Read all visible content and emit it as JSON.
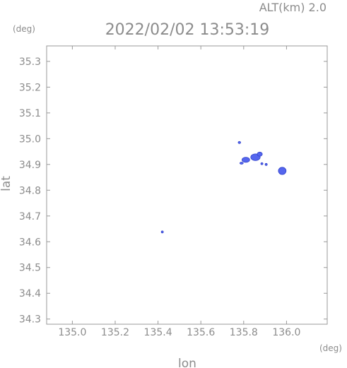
{
  "header": {
    "altitude_label": "ALT(km)  2.0",
    "timestamp": "2022/02/02 13:53:19",
    "y_unit": "(deg)",
    "x_unit": "(deg)"
  },
  "chart_data": {
    "type": "scatter",
    "xlabel": "lon",
    "ylabel": "lat",
    "xlim": [
      134.88,
      136.19
    ],
    "ylim": [
      34.28,
      35.36
    ],
    "x_ticks": [
      "135.0",
      "135.2",
      "135.4",
      "135.6",
      "135.8",
      "136.0"
    ],
    "x_tick_values": [
      135.0,
      135.2,
      135.4,
      135.6,
      135.8,
      136.0
    ],
    "y_ticks": [
      "34.3",
      "34.4",
      "34.5",
      "34.6",
      "34.7",
      "34.8",
      "34.9",
      "35.0",
      "35.1",
      "35.2",
      "35.3"
    ],
    "y_tick_values": [
      34.3,
      34.4,
      34.5,
      34.6,
      34.7,
      34.8,
      34.9,
      35.0,
      35.1,
      35.2,
      35.3
    ],
    "grid": false,
    "echo_color": "#5566ee",
    "echo_edge_color": "#3344cc",
    "echo_cells": [
      {
        "lon": 135.78,
        "lat": 34.985,
        "rx_deg": 0.006,
        "ry_deg": 0.003
      },
      {
        "lon": 135.81,
        "lat": 34.918,
        "rx_deg": 0.018,
        "ry_deg": 0.01
      },
      {
        "lon": 135.855,
        "lat": 34.928,
        "rx_deg": 0.022,
        "ry_deg": 0.013
      },
      {
        "lon": 135.875,
        "lat": 34.94,
        "rx_deg": 0.012,
        "ry_deg": 0.008
      },
      {
        "lon": 135.79,
        "lat": 34.905,
        "rx_deg": 0.008,
        "ry_deg": 0.003
      },
      {
        "lon": 135.885,
        "lat": 34.903,
        "rx_deg": 0.005,
        "ry_deg": 0.003
      },
      {
        "lon": 135.905,
        "lat": 34.9,
        "rx_deg": 0.005,
        "ry_deg": 0.003
      },
      {
        "lon": 135.98,
        "lat": 34.875,
        "rx_deg": 0.018,
        "ry_deg": 0.014
      },
      {
        "lon": 135.42,
        "lat": 34.638,
        "rx_deg": 0.004,
        "ry_deg": 0.004
      }
    ]
  }
}
